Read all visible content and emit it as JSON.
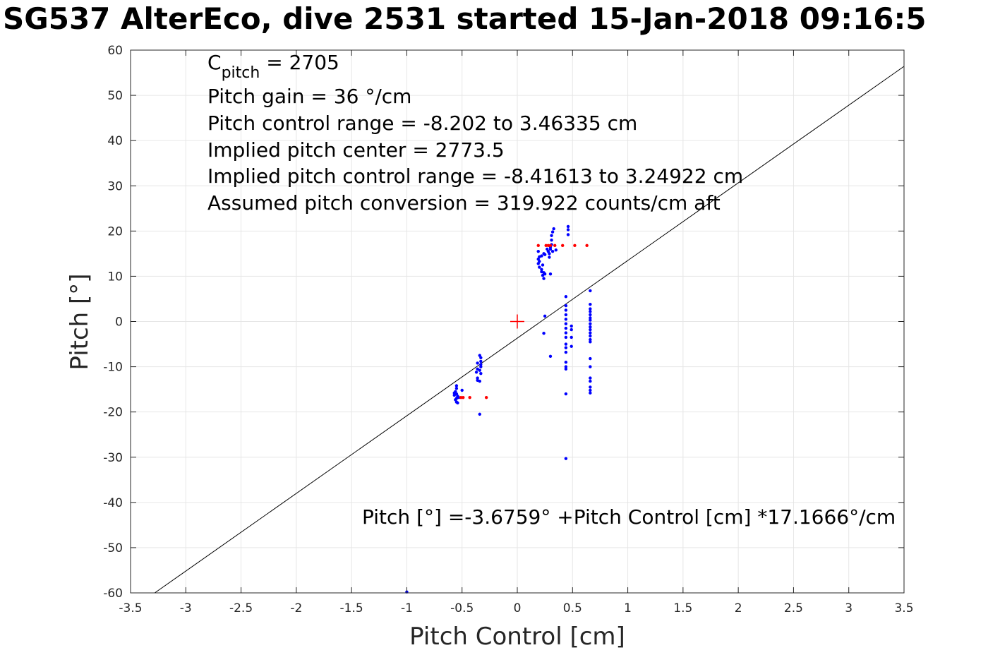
{
  "title": "SG537 AlterEco, dive 2531 started 15-Jan-2018 09:16:5",
  "chart_data": {
    "type": "scatter",
    "xlabel": "Pitch Control [cm]",
    "ylabel": "Pitch [°]",
    "xlim": [
      -3.5,
      3.5
    ],
    "ylim": [
      -60,
      60
    ],
    "xticks": [
      -3.5,
      -3,
      -2.5,
      -2,
      -1.5,
      -1,
      -0.5,
      0,
      0.5,
      1,
      1.5,
      2,
      2.5,
      3,
      3.5
    ],
    "yticks": [
      60,
      50,
      40,
      30,
      20,
      10,
      0,
      -10,
      -20,
      -30,
      -40,
      -50,
      -60
    ],
    "xtick_labels": [
      "-3.5",
      "-3",
      "-2.5",
      "-2",
      "-1.5",
      "-1",
      "-0.5",
      "0",
      "0.5",
      "1",
      "1.5",
      "2",
      "2.5",
      "3",
      "3.5"
    ],
    "ytick_labels": [
      "60",
      "50",
      "40",
      "30",
      "20",
      "10",
      "0",
      "-10",
      "-20",
      "-30",
      "-40",
      "-50",
      "-60"
    ],
    "grid": true,
    "annotations": {
      "cpitch_main": "C",
      "cpitch_sub": "pitch",
      "cpitch_value": " = 2705",
      "line2": "Pitch gain = 36 °/cm",
      "line3": "Pitch control range = -8.202 to 3.46335 cm",
      "line4": "Implied pitch center = 2773.5",
      "line5": "Implied pitch control range = -8.41613 to 3.24922 cm",
      "line6": "Assumed pitch conversion = 319.922 counts/cm aft",
      "fit_equation": "Pitch [°] =-3.6759° +Pitch Control [cm] *17.1666°/cm"
    },
    "fit_line": {
      "intercept": -3.6759,
      "slope": 17.1666,
      "color": "#000000"
    },
    "center_marker": {
      "x": 0,
      "y": 0,
      "color": "#ff0000"
    },
    "series": [
      {
        "color": "#0000ff",
        "points": [
          [
            -0.55,
            -14.2
          ],
          [
            -0.55,
            -14.8
          ],
          [
            -0.56,
            -15.5
          ],
          [
            -0.55,
            -16
          ],
          [
            -0.57,
            -16.3
          ],
          [
            -0.54,
            -16.5
          ],
          [
            -0.55,
            -17
          ],
          [
            -0.56,
            -17.3
          ],
          [
            -0.55,
            -17.8
          ],
          [
            -0.54,
            -18
          ],
          [
            -0.57,
            -15.8
          ],
          [
            -0.53,
            -16.8
          ],
          [
            -0.5,
            -15.2
          ],
          [
            -0.36,
            -9.2
          ],
          [
            -0.36,
            -10.5
          ],
          [
            -0.37,
            -11.2
          ],
          [
            -0.36,
            -12.5
          ],
          [
            -0.36,
            -13
          ],
          [
            -0.34,
            -13.2
          ],
          [
            -0.33,
            -8
          ],
          [
            -0.33,
            -8.8
          ],
          [
            -0.33,
            -9.5
          ],
          [
            -0.33,
            -10
          ],
          [
            -0.34,
            -10.8
          ],
          [
            -0.33,
            -11.5
          ],
          [
            -0.34,
            -7.5
          ],
          [
            -0.34,
            -20.5
          ],
          [
            0.19,
            15.5
          ],
          [
            0.2,
            14.3
          ],
          [
            0.19,
            13.8
          ],
          [
            0.2,
            13.3
          ],
          [
            0.19,
            12.8
          ],
          [
            0.2,
            12
          ],
          [
            0.22,
            11.5
          ],
          [
            0.23,
            12.5
          ],
          [
            0.22,
            11
          ],
          [
            0.24,
            10.8
          ],
          [
            0.23,
            10.2
          ],
          [
            0.24,
            9.5
          ],
          [
            0.25,
            10.5
          ],
          [
            0.22,
            14.5
          ],
          [
            0.24,
            15
          ],
          [
            0.25,
            14.8
          ],
          [
            0.27,
            16
          ],
          [
            0.28,
            15.5
          ],
          [
            0.29,
            15
          ],
          [
            0.3,
            16.5
          ],
          [
            0.31,
            17
          ],
          [
            0.31,
            18
          ],
          [
            0.31,
            19
          ],
          [
            0.32,
            19.8
          ],
          [
            0.33,
            20.5
          ],
          [
            0.3,
            16
          ],
          [
            0.32,
            15.5
          ],
          [
            0.29,
            14.2
          ],
          [
            0.35,
            15.8
          ],
          [
            0.3,
            10.5
          ],
          [
            0.25,
            1.2
          ],
          [
            0.24,
            -2.6
          ],
          [
            0.3,
            -7.7
          ],
          [
            0.46,
            21
          ],
          [
            0.46,
            20.3
          ],
          [
            0.46,
            19.2
          ],
          [
            0.44,
            5.5
          ],
          [
            0.44,
            3.5
          ],
          [
            0.44,
            2.5
          ],
          [
            0.44,
            1.5
          ],
          [
            0.44,
            0.5
          ],
          [
            0.44,
            -0.5
          ],
          [
            0.44,
            -1.5
          ],
          [
            0.44,
            -2.5
          ],
          [
            0.44,
            -3.5
          ],
          [
            0.44,
            -5
          ],
          [
            0.44,
            -5.8
          ],
          [
            0.44,
            -6.8
          ],
          [
            0.44,
            -9
          ],
          [
            0.44,
            -10
          ],
          [
            0.44,
            -10.5
          ],
          [
            0.44,
            -16
          ],
          [
            0.44,
            -30.3
          ],
          [
            0.49,
            -1
          ],
          [
            0.49,
            -1.8
          ],
          [
            0.49,
            -3.5
          ],
          [
            0.49,
            -5.5
          ],
          [
            0.66,
            6.8
          ],
          [
            0.66,
            3.8
          ],
          [
            0.66,
            2.8
          ],
          [
            0.66,
            2.2
          ],
          [
            0.66,
            1.5
          ],
          [
            0.66,
            0.8
          ],
          [
            0.66,
            0.3
          ],
          [
            0.66,
            -0.5
          ],
          [
            0.66,
            -1.2
          ],
          [
            0.66,
            -1.8
          ],
          [
            0.66,
            -2.5
          ],
          [
            0.66,
            -3.2
          ],
          [
            0.66,
            -4
          ],
          [
            0.66,
            -4.5
          ],
          [
            0.66,
            -8.2
          ],
          [
            0.66,
            -10
          ],
          [
            0.66,
            -12.5
          ],
          [
            0.66,
            -13.2
          ],
          [
            0.66,
            -14.5
          ],
          [
            0.66,
            -15.2
          ],
          [
            0.66,
            -15.8
          ],
          [
            -1.0,
            -59.8
          ]
        ]
      },
      {
        "color": "#ff0000",
        "points": [
          [
            -0.51,
            -16.8
          ],
          [
            -0.49,
            -16.8
          ],
          [
            -0.43,
            -16.8
          ],
          [
            -0.28,
            -16.8
          ],
          [
            0.19,
            16.8
          ],
          [
            0.26,
            16.8
          ],
          [
            0.28,
            16.8
          ],
          [
            0.3,
            16.8
          ],
          [
            0.34,
            16.8
          ],
          [
            0.41,
            16.8
          ],
          [
            0.52,
            16.8
          ],
          [
            0.63,
            16.8
          ]
        ]
      }
    ]
  }
}
